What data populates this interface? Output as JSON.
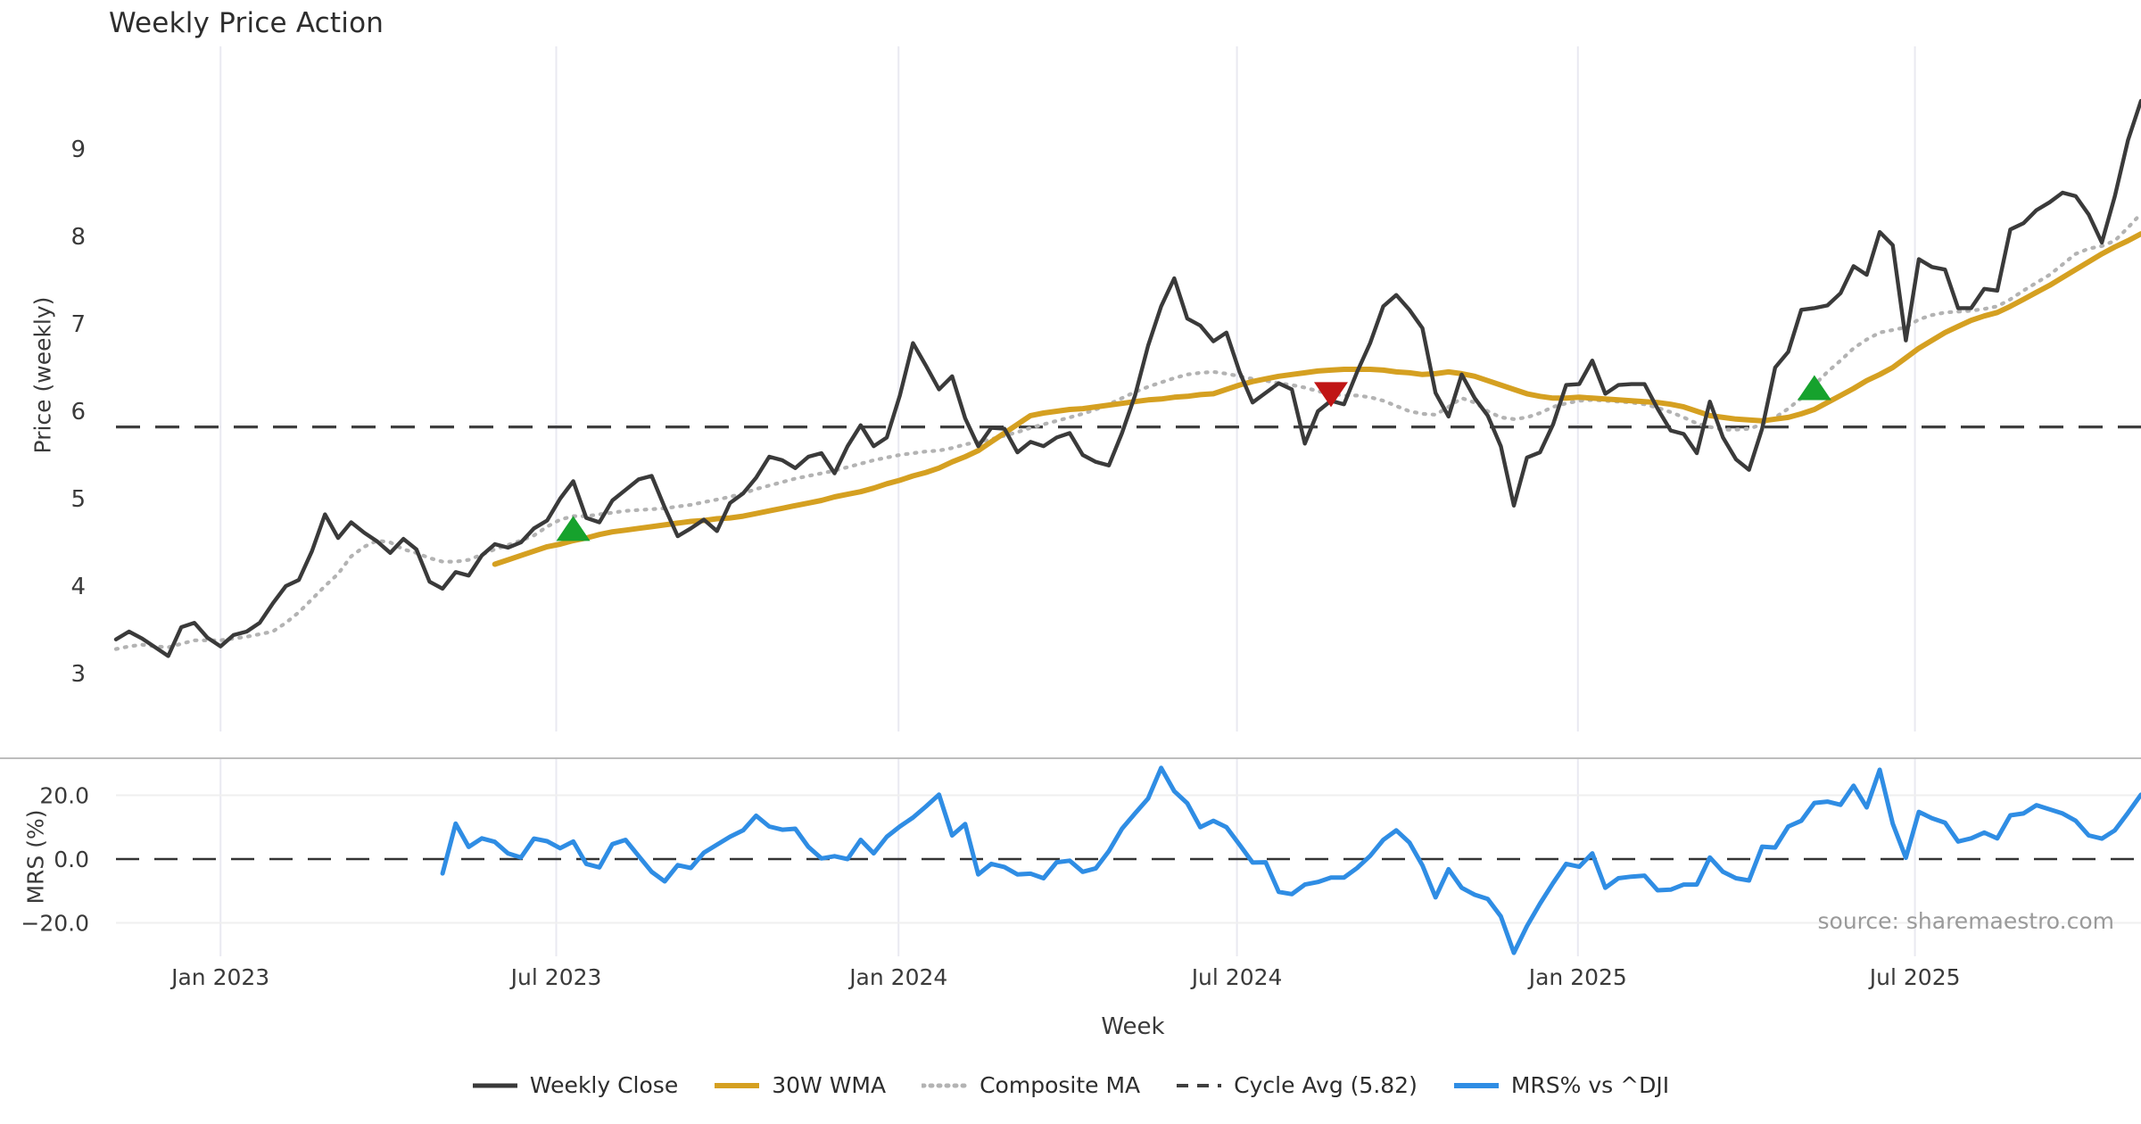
{
  "title": "Weekly Price Action",
  "source": "source: sharemaestro.com",
  "x_axis": {
    "label": "Week",
    "ticks": [
      "Jan 2023",
      "Jul 2023",
      "Jan 2024",
      "Jul 2024",
      "Jan 2025",
      "Jul 2025"
    ],
    "tick_weeks": [
      8,
      33.7,
      59.9,
      85.8,
      111.9,
      137.7
    ]
  },
  "price_panel": {
    "ylabel": "Price (weekly)",
    "ticks": [
      9,
      8,
      7,
      6,
      5,
      4,
      3
    ],
    "ylim": [
      2.85,
      10.0
    ]
  },
  "mrs_panel": {
    "ylabel": "MRS (%)",
    "ticks": [
      {
        "label": "20.0",
        "value": 20
      },
      {
        "label": "0.0",
        "value": 0
      },
      {
        "label": "−20.0",
        "value": -20
      }
    ],
    "ylim": [
      -34,
      32
    ]
  },
  "legend": {
    "items": [
      {
        "label": "Weekly Close",
        "color": "#3a3a3a",
        "style": "solid",
        "width": 5
      },
      {
        "label": "30W WMA",
        "color": "#d5a021",
        "style": "solid",
        "width": 6
      },
      {
        "label": "Composite MA",
        "color": "#b3b3b3",
        "style": "dotted",
        "width": 5
      },
      {
        "label": "Cycle Avg (5.82)",
        "color": "#3f3f3f",
        "style": "dashed",
        "width": 4
      },
      {
        "label": "MRS% vs ^DJI",
        "color": "#2f8de4",
        "style": "solid",
        "width": 6
      }
    ]
  },
  "colors": {
    "close": "#3a3a3a",
    "wma": "#d5a021",
    "composite": "#b3b3b3",
    "cycle": "#3f3f3f",
    "mrs": "#2f8de4",
    "buy": "#16a22d",
    "sell": "#c01515",
    "grid": "#e9e9f1",
    "panel_border": "#bdbdbd",
    "hgrid": "#efefef"
  },
  "chart_data": {
    "type": "line",
    "title": "Weekly Price Action",
    "xlabel": "Week",
    "x_tick_labels": [
      "Jan 2023",
      "Jul 2023",
      "Jan 2024",
      "Jul 2024",
      "Jan 2025",
      "Jul 2025"
    ],
    "cycle_avg": 5.82,
    "panels": [
      {
        "name": "price",
        "ylabel": "Price (weekly)",
        "ylim": [
          2.85,
          10.0
        ],
        "grid": "vertical"
      },
      {
        "name": "mrs",
        "ylabel": "MRS (%)",
        "ylim": [
          -34,
          32
        ],
        "grid": "both",
        "zero_line_dashed": true
      }
    ],
    "series": {
      "weekly_close": {
        "panel": "price",
        "start_week": 0,
        "values": [
          3.39,
          3.48,
          3.4,
          3.3,
          3.2,
          3.53,
          3.58,
          3.41,
          3.31,
          3.44,
          3.48,
          3.58,
          3.8,
          4.0,
          4.07,
          4.4,
          4.82,
          4.55,
          4.73,
          4.61,
          4.51,
          4.38,
          4.54,
          4.42,
          4.05,
          3.97,
          4.16,
          4.12,
          4.35,
          4.48,
          4.44,
          4.5,
          4.66,
          4.75,
          5.0,
          5.2,
          4.78,
          4.73,
          4.98,
          5.1,
          5.22,
          5.26,
          4.9,
          4.57,
          4.66,
          4.76,
          4.63,
          4.95,
          5.06,
          5.24,
          5.48,
          5.44,
          5.35,
          5.48,
          5.52,
          5.29,
          5.6,
          5.84,
          5.6,
          5.7,
          6.18,
          6.78,
          6.52,
          6.25,
          6.4,
          5.92,
          5.6,
          5.81,
          5.8,
          5.53,
          5.65,
          5.6,
          5.7,
          5.75,
          5.5,
          5.42,
          5.38,
          5.75,
          6.18,
          6.75,
          7.2,
          7.52,
          7.06,
          6.98,
          6.8,
          6.9,
          6.45,
          6.1,
          6.21,
          6.32,
          6.25,
          5.63,
          6.0,
          6.12,
          6.08,
          6.45,
          6.78,
          7.2,
          7.33,
          7.16,
          6.95,
          6.21,
          5.94,
          6.42,
          6.15,
          5.95,
          5.6,
          4.92,
          5.47,
          5.53,
          5.85,
          6.3,
          6.31,
          6.58,
          6.2,
          6.3,
          6.31,
          6.31,
          6.03,
          5.78,
          5.74,
          5.52,
          6.11,
          5.7,
          5.45,
          5.33,
          5.8,
          6.5,
          6.68,
          7.16,
          7.18,
          7.21,
          7.35,
          7.66,
          7.56,
          8.05,
          7.9,
          6.81,
          7.74,
          7.65,
          7.62,
          7.18,
          7.18,
          7.4,
          7.38,
          8.08,
          8.15,
          8.3,
          8.39,
          8.5,
          8.46,
          8.25,
          7.93,
          8.46,
          9.1,
          9.55
        ]
      },
      "wma_30w": {
        "panel": "price",
        "start_week": 29,
        "values": [
          4.25,
          4.3,
          4.35,
          4.4,
          4.45,
          4.48,
          4.52,
          4.55,
          4.59,
          4.62,
          4.64,
          4.66,
          4.68,
          4.7,
          4.72,
          4.74,
          4.75,
          4.77,
          4.78,
          4.8,
          4.83,
          4.86,
          4.89,
          4.92,
          4.95,
          4.98,
          5.02,
          5.05,
          5.08,
          5.12,
          5.17,
          5.21,
          5.26,
          5.3,
          5.35,
          5.42,
          5.48,
          5.55,
          5.65,
          5.75,
          5.85,
          5.95,
          5.98,
          6.0,
          6.02,
          6.03,
          6.05,
          6.07,
          6.09,
          6.11,
          6.13,
          6.14,
          6.16,
          6.17,
          6.19,
          6.2,
          6.25,
          6.3,
          6.34,
          6.37,
          6.4,
          6.42,
          6.44,
          6.46,
          6.47,
          6.48,
          6.48,
          6.48,
          6.47,
          6.45,
          6.44,
          6.42,
          6.43,
          6.45,
          6.43,
          6.4,
          6.35,
          6.3,
          6.25,
          6.2,
          6.17,
          6.15,
          6.15,
          6.16,
          6.15,
          6.14,
          6.13,
          6.12,
          6.11,
          6.1,
          6.08,
          6.05,
          6.0,
          5.95,
          5.93,
          5.91,
          5.9,
          5.89,
          5.91,
          5.93,
          5.97,
          6.02,
          6.1,
          6.18,
          6.26,
          6.35,
          6.42,
          6.5,
          6.61,
          6.72,
          6.81,
          6.9,
          6.97,
          7.04,
          7.09,
          7.13,
          7.2,
          7.28,
          7.36,
          7.44,
          7.53,
          7.62,
          7.71,
          7.8,
          7.88,
          7.95,
          8.03
        ]
      },
      "composite_ma": {
        "panel": "price",
        "start_week": 0,
        "values": [
          3.28,
          3.31,
          3.33,
          3.31,
          3.3,
          3.34,
          3.38,
          3.38,
          3.38,
          3.4,
          3.42,
          3.45,
          3.48,
          3.58,
          3.7,
          3.85,
          4.0,
          4.14,
          4.34,
          4.45,
          4.52,
          4.5,
          4.42,
          4.38,
          4.32,
          4.28,
          4.28,
          4.3,
          4.36,
          4.42,
          4.47,
          4.52,
          4.58,
          4.68,
          4.76,
          4.8,
          4.8,
          4.82,
          4.84,
          4.86,
          4.87,
          4.88,
          4.89,
          4.91,
          4.93,
          4.96,
          4.99,
          5.02,
          5.06,
          5.11,
          5.15,
          5.19,
          5.23,
          5.26,
          5.29,
          5.32,
          5.36,
          5.4,
          5.44,
          5.47,
          5.5,
          5.52,
          5.54,
          5.55,
          5.58,
          5.62,
          5.65,
          5.68,
          5.72,
          5.76,
          5.81,
          5.85,
          5.89,
          5.93,
          5.97,
          6.02,
          6.08,
          6.15,
          6.22,
          6.28,
          6.33,
          6.38,
          6.42,
          6.44,
          6.45,
          6.43,
          6.4,
          6.37,
          6.35,
          6.32,
          6.3,
          6.27,
          6.23,
          6.2,
          6.18,
          6.18,
          6.16,
          6.12,
          6.06,
          6.0,
          5.97,
          5.96,
          6.05,
          6.15,
          6.1,
          6.0,
          5.93,
          5.91,
          5.93,
          5.98,
          6.05,
          6.09,
          6.12,
          6.13,
          6.12,
          6.11,
          6.1,
          6.08,
          6.04,
          5.99,
          5.93,
          5.86,
          5.82,
          5.79,
          5.79,
          5.8,
          5.85,
          5.93,
          6.03,
          6.15,
          6.3,
          6.45,
          6.58,
          6.72,
          6.82,
          6.9,
          6.93,
          6.96,
          7.05,
          7.1,
          7.13,
          7.14,
          7.15,
          7.17,
          7.2,
          7.28,
          7.38,
          7.47,
          7.56,
          7.68,
          7.8,
          7.86,
          7.89,
          7.95,
          8.1,
          8.26
        ]
      },
      "mrs_pct": {
        "panel": "mrs",
        "start_week": 25,
        "values": [
          -4.5,
          11.1,
          3.8,
          6.5,
          5.4,
          1.8,
          0.5,
          6.4,
          5.6,
          3.4,
          5.5,
          -1.5,
          -2.6,
          4.7,
          6.0,
          1.0,
          -4.0,
          -7.0,
          -1.9,
          -2.8,
          2.0,
          4.5,
          7.0,
          9.0,
          13.6,
          10.2,
          9.2,
          9.5,
          3.8,
          0.2,
          0.9,
          0.0,
          6.0,
          1.8,
          7.0,
          10.2,
          13.0,
          16.5,
          20.2,
          7.4,
          11.0,
          -4.8,
          -1.5,
          -2.5,
          -4.8,
          -4.6,
          -6.0,
          -1.0,
          -0.5,
          -4.0,
          -2.9,
          2.5,
          9.5,
          14.3,
          19.0,
          28.6,
          21.3,
          17.5,
          10.0,
          12.0,
          10.0,
          4.5,
          -1.1,
          -1.0,
          -10.3,
          -11.0,
          -8.0,
          -7.2,
          -5.8,
          -5.8,
          -2.8,
          1.0,
          6.0,
          9.0,
          5.2,
          -2.0,
          -12.0,
          -3.2,
          -9.0,
          -11.2,
          -12.5,
          -18.0,
          -29.4,
          -21.0,
          -14.0,
          -7.5,
          -1.5,
          -2.4,
          1.8,
          -9.0,
          -6.0,
          -5.5,
          -5.2,
          -9.8,
          -9.6,
          -8.0,
          -8.0,
          0.5,
          -4.0,
          -6.0,
          -6.7,
          3.9,
          3.6,
          10.2,
          12.0,
          17.6,
          18.0,
          17.0,
          23.0,
          16.2,
          28.0,
          11.1,
          0.4,
          14.8,
          12.8,
          11.4,
          5.5,
          6.5,
          8.3,
          6.5,
          13.7,
          14.3,
          16.9,
          15.6,
          14.3,
          12.0,
          7.4,
          6.4,
          9.0,
          14.5,
          20.2
        ]
      }
    },
    "signals": [
      {
        "week": 35,
        "price": 4.66,
        "direction": "buy"
      },
      {
        "week": 93,
        "price": 6.19,
        "direction": "sell"
      },
      {
        "week": 130,
        "price": 6.27,
        "direction": "buy"
      }
    ]
  }
}
